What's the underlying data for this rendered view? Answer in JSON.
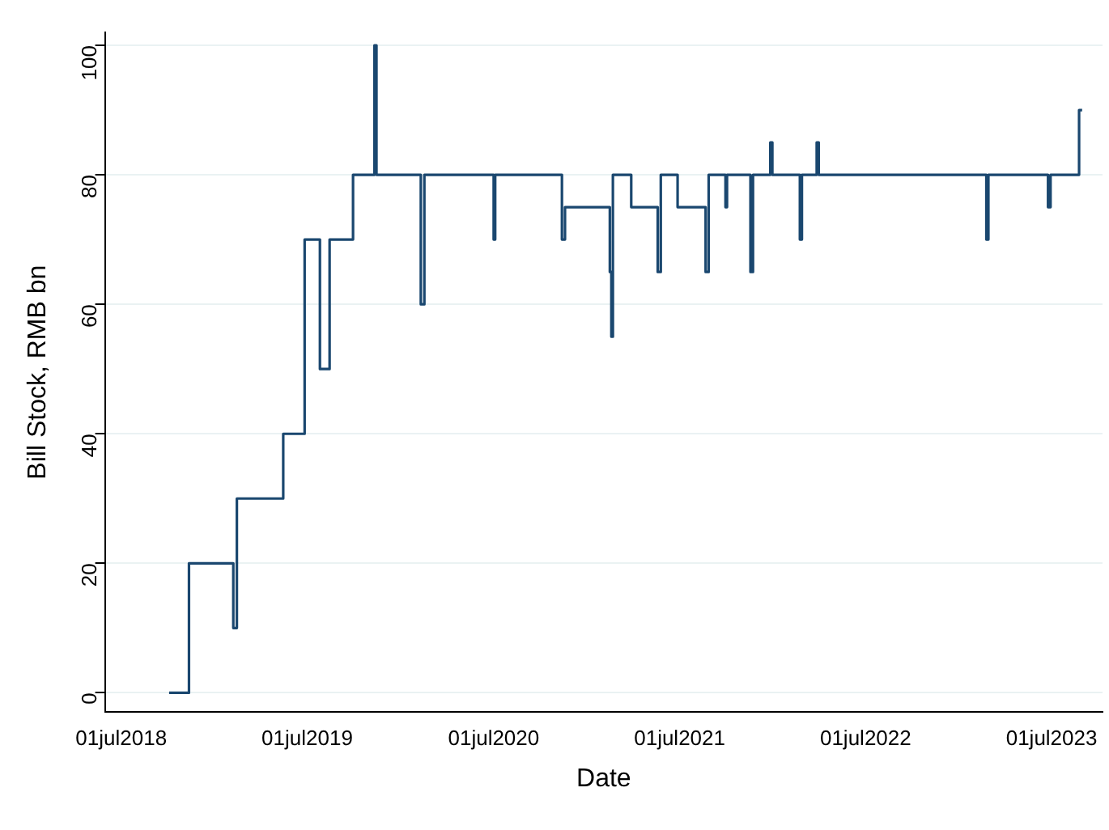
{
  "chart_data": {
    "type": "step",
    "xlabel": "Date",
    "ylabel": "Bill Stock, RMB bn",
    "x": [
      "2018-10-03",
      "2018-11-11",
      "2019-02-06",
      "2019-02-13",
      "2019-05-15",
      "2019-06-26",
      "2019-07-26",
      "2019-08-14",
      "2019-09-29",
      "2019-11-10",
      "2019-11-14",
      "2020-02-09",
      "2020-02-16",
      "2020-07-01",
      "2020-07-04",
      "2020-11-12",
      "2020-11-18",
      "2021-02-14",
      "2021-02-17",
      "2021-02-20",
      "2021-03-28",
      "2021-05-19",
      "2021-05-25",
      "2021-06-27",
      "2021-08-21",
      "2021-08-27",
      "2021-09-29",
      "2021-10-02",
      "2021-11-17",
      "2021-11-22",
      "2021-12-26",
      "2021-12-30",
      "2022-02-22",
      "2022-02-26",
      "2022-03-27",
      "2022-03-31",
      "2023-02-23",
      "2023-02-27",
      "2023-06-24",
      "2023-06-29",
      "2023-08-24",
      "2023-08-30"
    ],
    "series": [
      {
        "color": "#1a476f",
        "values": [
          0,
          20,
          10,
          30,
          40,
          70,
          50,
          70,
          80,
          100,
          80,
          60,
          80,
          70,
          80,
          70,
          75,
          65,
          55,
          80,
          75,
          65,
          80,
          75,
          65,
          80,
          75,
          80,
          65,
          80,
          85,
          80,
          70,
          80,
          85,
          80,
          70,
          80,
          75,
          80,
          90,
          90
        ]
      }
    ],
    "xlim": [
      "2018-05-30",
      "2023-10-09"
    ],
    "xticks": [
      {
        "value": "2018-07-01",
        "label": "01jul2018"
      },
      {
        "value": "2019-07-01",
        "label": "01jul2019"
      },
      {
        "value": "2020-07-01",
        "label": "01jul2020"
      },
      {
        "value": "2021-07-01",
        "label": "01jul2021"
      },
      {
        "value": "2022-07-01",
        "label": "01jul2022"
      },
      {
        "value": "2023-07-01",
        "label": "01jul2023"
      }
    ],
    "ylim": [
      -3,
      102
    ],
    "yticks": [
      0,
      20,
      40,
      60,
      80,
      100
    ],
    "grid": "y",
    "legend": false
  }
}
